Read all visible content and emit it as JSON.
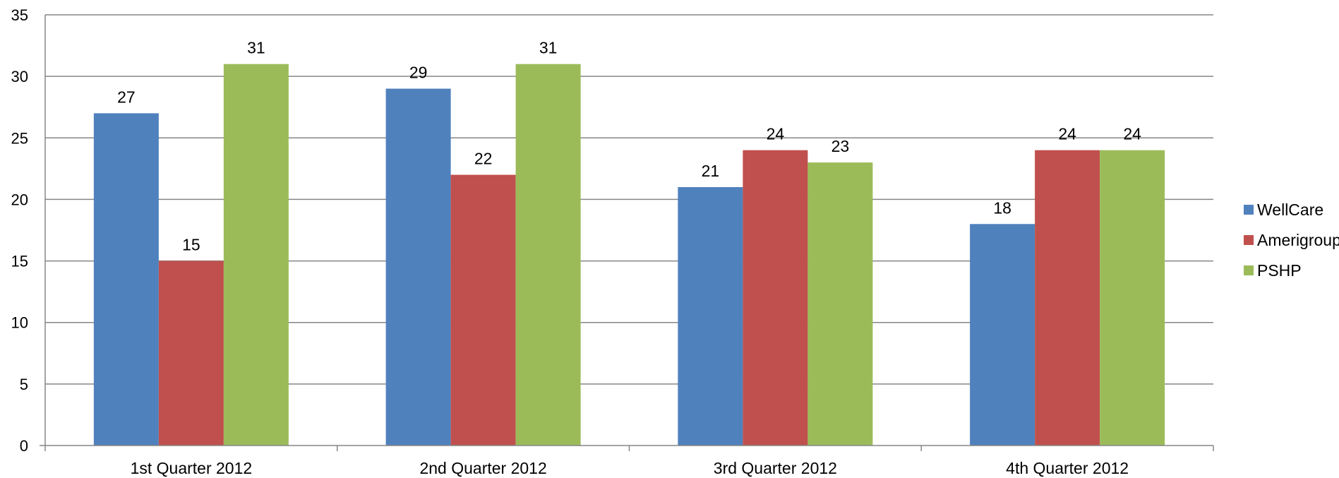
{
  "chart_data": {
    "type": "bar",
    "categories": [
      "1st Quarter 2012",
      "2nd Quarter 2012",
      "3rd Quarter 2012",
      "4th Quarter 2012"
    ],
    "series": [
      {
        "name": "WellCare",
        "values": [
          27,
          29,
          21,
          18
        ],
        "color": "#4F81BD"
      },
      {
        "name": "Amerigroup",
        "values": [
          15,
          22,
          24,
          24
        ],
        "color": "#C0504D"
      },
      {
        "name": "PSHP",
        "values": [
          31,
          31,
          23,
          24
        ],
        "color": "#9BBB59"
      }
    ],
    "title": "",
    "xlabel": "",
    "ylabel": "",
    "ylim": [
      0,
      35
    ],
    "yticks": [
      0,
      5,
      10,
      15,
      20,
      25,
      30,
      35
    ],
    "grid": true,
    "legend_position": "right",
    "data_labels": true
  }
}
